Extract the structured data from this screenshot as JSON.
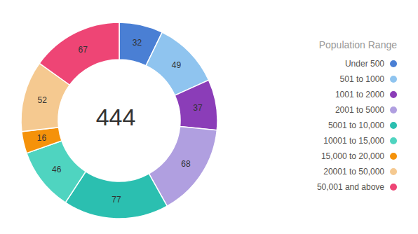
{
  "chart_data": {
    "type": "pie",
    "title": "Population Range",
    "annotations": [
      "444"
    ],
    "categories": [
      "Under 500",
      "501 to 1000",
      "1001 to 2000",
      "2001 to 5000",
      "5001 to 10,000",
      "10001 to 15,000",
      "15,000 to 20,000",
      "20001 to 50,000",
      "50,001 and above"
    ],
    "values": [
      32,
      49,
      37,
      68,
      77,
      46,
      16,
      52,
      67
    ],
    "colors": [
      "#4A7FD4",
      "#8FC4EF",
      "#8B3DB8",
      "#B09FE0",
      "#2BBFB0",
      "#4FD4C0",
      "#F5920A",
      "#F5C990",
      "#EE4575"
    ],
    "data_labels": true,
    "legend": "right"
  }
}
